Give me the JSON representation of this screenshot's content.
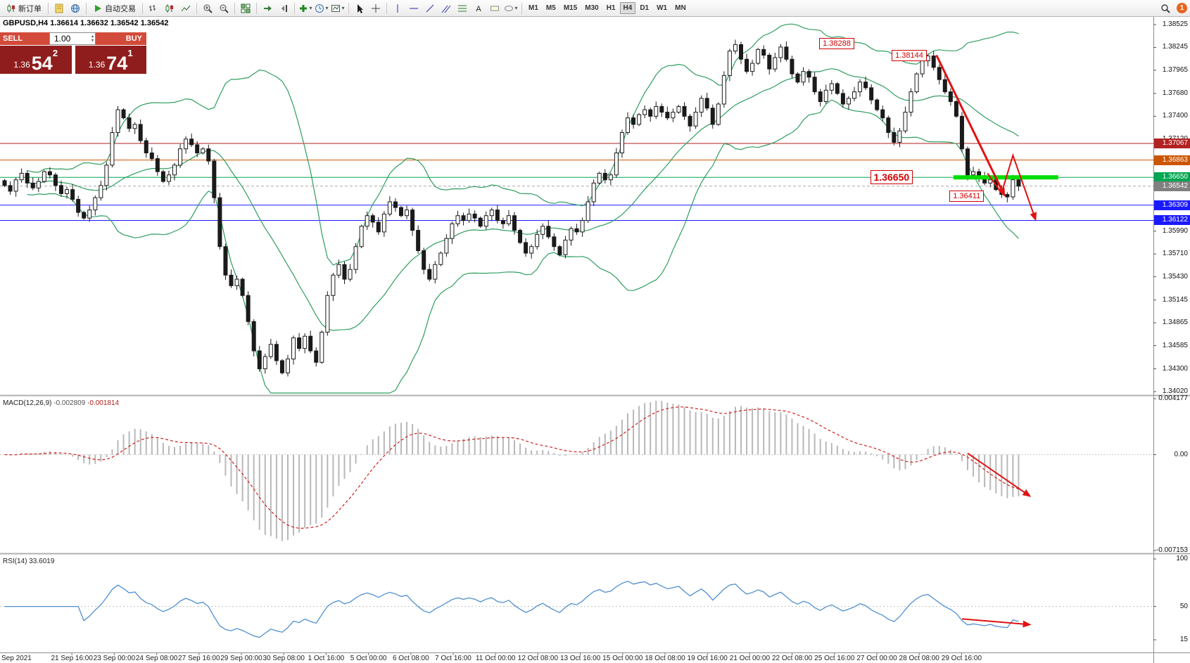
{
  "colors": {
    "up_candle": "#ffffff",
    "down_candle": "#1a1a1a",
    "bollinger": "#2f9e5f",
    "macd_hist": "#b8b8b8",
    "macd_signal": "#cc2222",
    "rsi_line": "#4f8fd0",
    "arrow": "#e01212",
    "annotation": "#d00000",
    "badge_notification": "#e8641e"
  },
  "toolbar": {
    "items": [
      {
        "name": "new-order-button",
        "type": "button",
        "icon": "candles",
        "label": "新订单"
      },
      {
        "type": "sep"
      },
      {
        "name": "metaeditor-icon",
        "type": "icon",
        "icon": "doc-yellow"
      },
      {
        "name": "market-watch-icon",
        "type": "icon",
        "icon": "globe"
      },
      {
        "type": "sep"
      },
      {
        "name": "auto-trading-button",
        "type": "button",
        "icon": "play-green",
        "label": "自动交易"
      },
      {
        "type": "sep"
      },
      {
        "name": "bar-chart-icon",
        "type": "icon",
        "icon": "bars"
      },
      {
        "name": "candlestick-chart-icon",
        "type": "icon",
        "icon": "candles"
      },
      {
        "name": "line-chart-icon",
        "type": "icon",
        "icon": "linechart"
      },
      {
        "type": "sep"
      },
      {
        "name": "zoom-in-icon",
        "type": "icon",
        "icon": "zoom-in"
      },
      {
        "name": "zoom-out-icon",
        "type": "icon",
        "icon": "zoom-out"
      },
      {
        "type": "sep"
      },
      {
        "name": "tile-windows-icon",
        "type": "icon",
        "icon": "grid-green"
      },
      {
        "type": "sep"
      },
      {
        "name": "auto-scroll-icon",
        "type": "icon",
        "icon": "autoscroll"
      },
      {
        "name": "chart-shift-icon",
        "type": "icon",
        "icon": "chartshift"
      },
      {
        "type": "sep"
      },
      {
        "name": "indicators-dropdown",
        "type": "dropdown",
        "icon": "plus-green"
      },
      {
        "name": "periods-dropdown",
        "type": "dropdown",
        "icon": "clock"
      },
      {
        "name": "templates-dropdown",
        "type": "dropdown",
        "icon": "template"
      },
      {
        "type": "sep"
      },
      {
        "name": "cursor-icon",
        "type": "icon",
        "icon": "cursor"
      },
      {
        "name": "crosshair-icon",
        "type": "icon",
        "icon": "crosshair"
      },
      {
        "type": "sep"
      },
      {
        "name": "vertical-line-icon",
        "type": "icon",
        "icon": "vline"
      },
      {
        "name": "horizontal-line-icon",
        "type": "icon",
        "icon": "hline"
      },
      {
        "name": "trendline-icon",
        "type": "icon",
        "icon": "trendline"
      },
      {
        "name": "channel-icon",
        "type": "icon",
        "icon": "channel"
      },
      {
        "name": "fibonacci-icon",
        "type": "icon",
        "icon": "fibo"
      },
      {
        "name": "text-icon",
        "type": "icon",
        "icon": "textA"
      },
      {
        "name": "label-icon",
        "type": "icon",
        "icon": "label"
      },
      {
        "name": "shapes-dropdown",
        "type": "dropdown",
        "icon": "shapes"
      },
      {
        "type": "sep"
      },
      {
        "name": "tf-m1",
        "type": "tf",
        "label": "M1"
      },
      {
        "name": "tf-m5",
        "type": "tf",
        "label": "M5"
      },
      {
        "name": "tf-m15",
        "type": "tf",
        "label": "M15"
      },
      {
        "name": "tf-m30",
        "type": "tf",
        "label": "M30"
      },
      {
        "name": "tf-h1",
        "type": "tf",
        "label": "H1"
      },
      {
        "name": "tf-h4",
        "type": "tf",
        "label": "H4",
        "active": true
      },
      {
        "name": "tf-d1",
        "type": "tf",
        "label": "D1"
      },
      {
        "name": "tf-w1",
        "type": "tf",
        "label": "W1"
      },
      {
        "name": "tf-mn",
        "type": "tf",
        "label": "MN"
      },
      {
        "type": "spacer"
      },
      {
        "name": "search-icon",
        "type": "icon",
        "icon": "search"
      },
      {
        "name": "notification-badge",
        "type": "badge",
        "label": "1"
      }
    ]
  },
  "chart": {
    "title": "GBPUSD,H4 1.36614 1.36632 1.36542 1.36542",
    "symbol": "GBPUSD",
    "period": "H4",
    "ohlc": {
      "open": "1.36614",
      "high": "1.36632",
      "low": "1.36542",
      "close": "1.36542"
    }
  },
  "one_click": {
    "sell_label": "SELL",
    "buy_label": "BUY",
    "volume": "1.00",
    "sell_price_small": "1.36",
    "sell_price_big": "54",
    "sell_price_sup": "2",
    "buy_price_small": "1.36",
    "buy_price_big": "74",
    "buy_price_sup": "1"
  },
  "indicators": {
    "macd": {
      "label": "MACD(12,26,9)",
      "value_main": "-0.002809",
      "value_signal": "-0.001814",
      "axis": [
        "0.004177",
        "0.00",
        "-0.007153"
      ]
    },
    "rsi": {
      "label": "RSI(14)",
      "value": "33.6019",
      "axis": [
        "100",
        "50",
        "15"
      ]
    }
  },
  "price_axis": {
    "labels": [
      "1.38525",
      "1.38245",
      "1.37965",
      "1.37680",
      "1.37400",
      "1.37120",
      "1.35990",
      "1.35710",
      "1.35430",
      "1.35145",
      "1.34865",
      "1.34585",
      "1.34300",
      "1.34020"
    ],
    "badges": [
      {
        "value": "1.37067",
        "color": "#b22222"
      },
      {
        "value": "1.36863",
        "color": "#cc5500"
      },
      {
        "value": "1.36650",
        "color": "#00a651"
      },
      {
        "value": "1.36542",
        "color": "#808080"
      },
      {
        "value": "1.36309",
        "color": "#1a1aff"
      },
      {
        "value": "1.36122",
        "color": "#1a1aff"
      }
    ]
  },
  "time_axis": {
    "labels": [
      "Sep 2021",
      "21 Sep 16:00",
      "23 Sep 00:00",
      "24 Sep 08:00",
      "27 Sep 16:00",
      "29 Sep 00:00",
      "30 Sep 08:00",
      "1 Oct 16:00",
      "5 Oct 00:00",
      "6 Oct 08:00",
      "7 Oct 16:00",
      "11 Oct 00:00",
      "12 Oct 08:00",
      "13 Oct 16:00",
      "15 Oct 00:00",
      "18 Oct 08:00",
      "19 Oct 16:00",
      "21 Oct 00:00",
      "22 Oct 08:00",
      "25 Oct 16:00",
      "27 Oct 00:00",
      "28 Oct 08:00",
      "29 Oct 16:00"
    ]
  },
  "chart_data": {
    "type": "candlestick",
    "symbol": "GBPUSD",
    "timeframe": "H4",
    "price_range": {
      "min": 1.3402,
      "max": 1.38525
    },
    "closes": [
      1.3655,
      1.3648,
      1.3662,
      1.367,
      1.3658,
      1.3652,
      1.366,
      1.3672,
      1.3668,
      1.3655,
      1.3645,
      1.365,
      1.3638,
      1.3622,
      1.3615,
      1.3625,
      1.364,
      1.3655,
      1.368,
      1.372,
      1.3748,
      1.3738,
      1.3725,
      1.373,
      1.371,
      1.3695,
      1.3688,
      1.3672,
      1.366,
      1.3668,
      1.368,
      1.37,
      1.3712,
      1.3705,
      1.3695,
      1.37,
      1.3685,
      1.364,
      1.358,
      1.3545,
      1.3532,
      1.354,
      1.352,
      1.3488,
      1.3452,
      1.343,
      1.3445,
      1.346,
      1.344,
      1.3425,
      1.3442,
      1.3468,
      1.3455,
      1.347,
      1.3452,
      1.3438,
      1.3475,
      1.352,
      1.3545,
      1.3558,
      1.354,
      1.3552,
      1.358,
      1.3605,
      1.3618,
      1.361,
      1.3598,
      1.362,
      1.3635,
      1.3628,
      1.3618,
      1.3625,
      1.36,
      1.3575,
      1.3552,
      1.354,
      1.3558,
      1.3572,
      1.359,
      1.3608,
      1.3618,
      1.3612,
      1.362,
      1.3615,
      1.3605,
      1.3618,
      1.3625,
      1.3612,
      1.3608,
      1.3618,
      1.36,
      1.3585,
      1.3572,
      1.358,
      1.3595,
      1.3605,
      1.3592,
      1.358,
      1.357,
      1.3588,
      1.3602,
      1.3598,
      1.3612,
      1.3635,
      1.3658,
      1.367,
      1.3662,
      1.3668,
      1.3695,
      1.372,
      1.3738,
      1.373,
      1.3742,
      1.3748,
      1.374,
      1.3752,
      1.3745,
      1.3738,
      1.3745,
      1.3752,
      1.374,
      1.3728,
      1.3745,
      1.3762,
      1.375,
      1.373,
      1.3755,
      1.379,
      1.382,
      1.3828,
      1.381,
      1.3795,
      1.3805,
      1.3822,
      1.3815,
      1.3798,
      1.3812,
      1.3825,
      1.381,
      1.3792,
      1.3782,
      1.3795,
      1.3788,
      1.377,
      1.3758,
      1.3772,
      1.378,
      1.3768,
      1.3755,
      1.3762,
      1.377,
      1.3782,
      1.3775,
      1.376,
      1.3748,
      1.3738,
      1.372,
      1.3708,
      1.3722,
      1.3745,
      1.377,
      1.3792,
      1.3808,
      1.3814,
      1.38,
      1.3785,
      1.377,
      1.3758,
      1.374,
      1.37,
      1.3668,
      1.3672,
      1.3665,
      1.3658,
      1.3662,
      1.365,
      1.3644,
      1.3641,
      1.3662,
      1.36542
    ],
    "bollinger": {
      "period": 20,
      "deviation": 2
    },
    "macd": {
      "fast": 12,
      "slow": 26,
      "signal": 9,
      "range": [
        -0.007153,
        0.004177
      ]
    },
    "rsi": {
      "period": 14,
      "levels": [
        100,
        50,
        15
      ],
      "current": 33.6019
    },
    "hlines": [
      {
        "price": 1.37067,
        "color": "#b22222",
        "width": 1,
        "dash": ""
      },
      {
        "price": 1.36863,
        "color": "#cc5500",
        "width": 1,
        "dash": ""
      },
      {
        "price": 1.3665,
        "color": "#00a651",
        "width": 1,
        "dash": ""
      },
      {
        "price": 1.36542,
        "color": "#a8a8a8",
        "width": 1,
        "dash": "4 3"
      },
      {
        "price": 1.36309,
        "color": "#1a1aff",
        "width": 1,
        "dash": ""
      },
      {
        "price": 1.36122,
        "color": "#1a1aff",
        "width": 1,
        "dash": ""
      }
    ],
    "green_segment": {
      "i1": 167.5,
      "i2": 186,
      "price": 1.3665,
      "color": "#00dd00",
      "width": 6
    },
    "annotations": [
      {
        "text": "1.38288",
        "i": 143.8,
        "price": 1.38288,
        "size": 11,
        "bold": false
      },
      {
        "text": "1.38144",
        "i": 156.6,
        "price": 1.38144,
        "size": 11,
        "bold": false
      },
      {
        "text": "1.36650",
        "i": 152.8,
        "price": 1.3665,
        "size": 14,
        "bold": true
      },
      {
        "text": "1.36411",
        "i": 166.8,
        "price": 1.36411,
        "size": 11,
        "bold": false
      }
    ],
    "arrows": [
      {
        "panel": "price",
        "width": 3,
        "pts": [
          [
            164.5,
            1.3815
          ],
          [
            176.5,
            1.3643
          ]
        ]
      },
      {
        "panel": "price",
        "width": 2,
        "pts": [
          [
            173.5,
            1.367
          ],
          [
            176,
            1.3646
          ],
          [
            178,
            1.3692
          ],
          [
            182,
            1.3613
          ]
        ]
      },
      {
        "panel": "macd",
        "width": 2,
        "pts": [
          [
            170,
            0.0001
          ],
          [
            181,
            -0.0031
          ]
        ]
      },
      {
        "panel": "rsi",
        "width": 2,
        "pts": [
          [
            169,
            37
          ],
          [
            181,
            31
          ]
        ]
      }
    ]
  }
}
